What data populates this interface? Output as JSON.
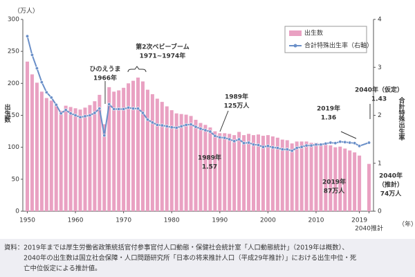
{
  "chart_data": {
    "type": "bar",
    "y_unit": "（万人）",
    "y_label": "出生数",
    "y2_label": "合計特殊出生率",
    "x_unit": "（年）",
    "categories": [
      "1950",
      null,
      null,
      null,
      null,
      null,
      null,
      null,
      null,
      null,
      "1960",
      null,
      null,
      null,
      null,
      null,
      null,
      null,
      null,
      null,
      "1970",
      null,
      null,
      null,
      null,
      null,
      null,
      null,
      null,
      null,
      "1980",
      null,
      null,
      null,
      null,
      null,
      null,
      null,
      null,
      null,
      "1990",
      null,
      null,
      null,
      null,
      null,
      null,
      null,
      null,
      null,
      "2000",
      null,
      null,
      null,
      null,
      null,
      null,
      null,
      null,
      null,
      "2010",
      null,
      null,
      null,
      null,
      null,
      null,
      null,
      null,
      "2019",
      "2040推計"
    ],
    "series": [
      {
        "name": "出生数",
        "color": "#e9a1c2",
        "values": [
          234,
          214,
          201,
          187,
          177,
          173,
          167,
          157,
          165,
          163,
          161,
          159,
          162,
          166,
          172,
          182,
          136,
          194,
          187,
          189,
          193,
          200,
          204,
          209,
          203,
          190,
          183,
          176,
          171,
          164,
          158,
          153,
          152,
          151,
          149,
          143,
          138,
          135,
          131,
          125,
          122,
          122,
          121,
          119,
          124,
          119,
          121,
          119,
          120,
          118,
          119,
          117,
          115,
          112,
          111,
          106,
          109,
          109,
          109,
          107,
          107,
          105,
          104,
          103,
          100,
          101,
          98,
          95,
          92,
          87,
          74
        ]
      },
      {
        "name": "合計特殊出生率（右軸）",
        "color": "#6a8fc8",
        "axis": "y2",
        "values": [
          3.65,
          3.26,
          2.98,
          2.69,
          2.48,
          2.37,
          2.22,
          2.04,
          2.11,
          2.04,
          2.0,
          1.96,
          1.98,
          2.0,
          2.05,
          2.14,
          1.58,
          2.23,
          2.13,
          2.13,
          2.13,
          2.16,
          2.14,
          2.14,
          2.05,
          1.91,
          1.85,
          1.8,
          1.79,
          1.77,
          1.75,
          1.74,
          1.77,
          1.8,
          1.81,
          1.76,
          1.72,
          1.69,
          1.66,
          1.57,
          1.54,
          1.53,
          1.5,
          1.46,
          1.5,
          1.42,
          1.43,
          1.39,
          1.38,
          1.34,
          1.36,
          1.33,
          1.32,
          1.29,
          1.29,
          1.26,
          1.32,
          1.34,
          1.37,
          1.37,
          1.39,
          1.39,
          1.41,
          1.43,
          1.42,
          1.45,
          1.44,
          1.43,
          1.42,
          1.36,
          1.43
        ]
      }
    ],
    "ylim": [
      0,
      300
    ],
    "yticks": [
      0,
      50,
      100,
      150,
      200,
      250,
      300
    ],
    "y2lim": [
      0,
      4
    ],
    "y2ticks": [
      0,
      1,
      2,
      3,
      4
    ],
    "grid": false,
    "legend": "top-right",
    "annotations": [
      [
        "ひのえうま",
        "1966年"
      ],
      [
        "第2次ベビーブーム",
        "1971~1974年"
      ],
      [
        "1989年",
        "125万人"
      ],
      [
        "1989年",
        "1.57"
      ],
      [
        "2019年",
        "1.36"
      ],
      [
        "2040年（仮定）",
        "1.43"
      ],
      [
        "2019年",
        "87万人"
      ],
      [
        "2040年",
        "（推計）",
        "74万人"
      ]
    ],
    "source": [
      "資料：2019年までは厚生労働省政策統括官付参事官付人口動態・保健社会統計室「人口動態統計」（2019年は概数）、",
      "　　　2040年の出生数は国立社会保障・人口問題研究所「日本の将来推計人口（平成29年推計）」における出生中位・死",
      "　　　亡中位仮定による推計値。"
    ]
  }
}
